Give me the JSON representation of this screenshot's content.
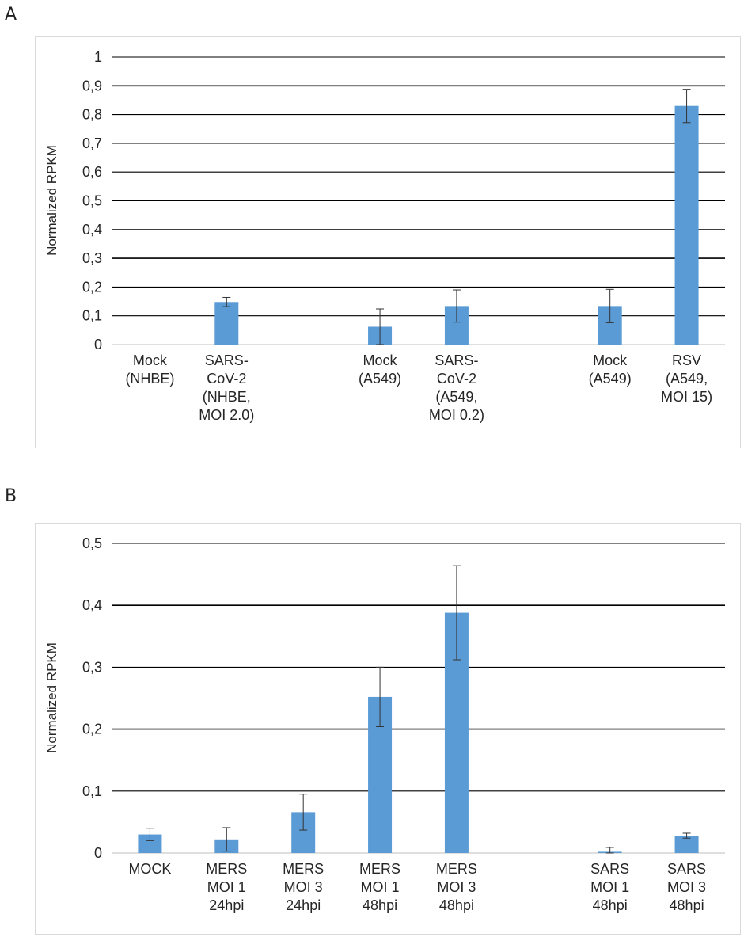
{
  "panels": {
    "a": {
      "letter": "A"
    },
    "b": {
      "letter": "B"
    }
  },
  "chart_data": [
    {
      "type": "bar",
      "panel": "A",
      "title": "",
      "xlabel": "",
      "ylabel": "Normalized RPKM",
      "ylim": [
        0,
        1
      ],
      "yticks": [
        "0",
        "0,1",
        "0,2",
        "0,3",
        "0,4",
        "0,5",
        "0,6",
        "0,7",
        "0,8",
        "0,9",
        "1"
      ],
      "grid": true,
      "bar_color": "#5b9bd5",
      "categories": [
        [
          "Mock",
          "(NHBE)"
        ],
        [
          "SARS-",
          "CoV-2",
          "(NHBE,",
          "MOI 2.0)"
        ],
        [],
        [
          "Mock",
          "(A549)"
        ],
        [
          "SARS-",
          "CoV-2",
          "(A549,",
          "MOI 0.2)"
        ],
        [],
        [
          "Mock",
          "(A549)"
        ],
        [
          "RSV",
          "(A549,",
          "MOI 15)"
        ]
      ],
      "values": [
        0,
        0.148,
        null,
        0.062,
        0.134,
        null,
        0.134,
        0.83
      ],
      "errors": [
        0,
        0.016,
        null,
        0.062,
        0.056,
        null,
        0.058,
        0.058
      ]
    },
    {
      "type": "bar",
      "panel": "B",
      "title": "",
      "xlabel": "",
      "ylabel": "Normalized RPKM",
      "ylim": [
        0,
        0.5
      ],
      "yticks": [
        "0",
        "0,1",
        "0,2",
        "0,3",
        "0,4",
        "0,5"
      ],
      "grid": true,
      "bar_color": "#5b9bd5",
      "categories": [
        [
          "MOCK"
        ],
        [
          "MERS",
          "MOI 1",
          "24hpi"
        ],
        [
          "MERS",
          "MOI 3",
          "24hpi"
        ],
        [
          "MERS",
          "MOI 1",
          "48hpi"
        ],
        [
          "MERS",
          "MOI 3",
          "48hpi"
        ],
        [],
        [
          "SARS",
          "MOI 1",
          "48hpi"
        ],
        [
          "SARS",
          "MOI 3",
          "48hpi"
        ]
      ],
      "values": [
        0.03,
        0.022,
        0.066,
        0.252,
        0.388,
        null,
        0.002,
        0.028
      ],
      "errors": [
        0.01,
        0.019,
        0.029,
        0.048,
        0.076,
        null,
        0.007,
        0.004
      ]
    }
  ]
}
